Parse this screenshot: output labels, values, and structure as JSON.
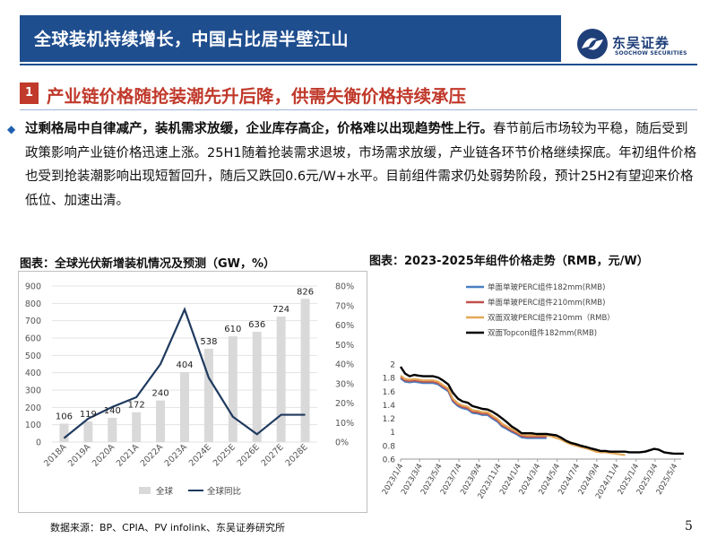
{
  "header": {
    "title": "全球装机持续增长，中国占比居半壁江山",
    "logo_name": "东吴证券",
    "logo_sub": "SOOCHOW SECURITIES"
  },
  "section": {
    "number": "1",
    "title": "产业链价格随抢装潮先升后降，供需失衡价格持续承压"
  },
  "paragraph": {
    "bold": "过剩格局中自律减产，装机需求放缓，企业库存高企，价格难以出现趋势性上行。",
    "normal": "春节前后市场较为平稳，随后受到政策影响产业链价格迅速上涨。25H1随着抢装需求退坡，市场需求放缓，产业链各环节价格继续探底。年初组件价格也受到抢装潮影响出现短暂回升，随后又跌回0.6元/W+水平。目前组件需求仍处弱势阶段，预计25H2有望迎来价格低位、加速出清。"
  },
  "footer": {
    "source": "数据来源：BP、CPIA、PV infolink、东吴证券研究所",
    "page": "5"
  },
  "chart_data": [
    {
      "type": "bar",
      "title": "图表：全球光伏新增装机情况及预测（GW，%）",
      "categories": [
        "2018A",
        "2019A",
        "2020A",
        "2021A",
        "2022A",
        "2023A",
        "2024E",
        "2025E",
        "2026E",
        "2027E",
        "2028E"
      ],
      "series": [
        {
          "name": "全球",
          "kind": "bar",
          "axis": "left",
          "values": [
            106,
            119,
            140,
            172,
            240,
            404,
            538,
            610,
            636,
            724,
            826
          ],
          "color": "#d9d9d9"
        },
        {
          "name": "全球同比",
          "kind": "line",
          "axis": "right",
          "values": [
            0.02,
            0.12,
            0.18,
            0.23,
            0.4,
            0.68,
            0.33,
            0.13,
            0.04,
            0.14,
            0.14
          ],
          "color": "#1f3a5f"
        }
      ],
      "y_left": {
        "min": 0,
        "max": 900,
        "ticks": [
          "0",
          "100",
          "200",
          "300",
          "400",
          "500",
          "600",
          "700",
          "800",
          "900"
        ]
      },
      "y_right": {
        "min": 0,
        "max": 0.8,
        "ticks": [
          "0%",
          "10%",
          "20%",
          "30%",
          "40%",
          "50%",
          "60%",
          "70%",
          "80%"
        ]
      },
      "grid": true,
      "legend": "bottom"
    },
    {
      "type": "line",
      "title": "图表：2023-2025年组件价格走势（RMB，元/W）",
      "x_ticks": [
        "2023/1/4",
        "2023/3/4",
        "2023/5/4",
        "2023/7/4",
        "2023/9/4",
        "2023/11/4",
        "2024/1/4",
        "2024/3/4",
        "2024/5/4",
        "2024/7/4",
        "2024/9/4",
        "2024/11/4",
        "2025/1/4",
        "2025/3/4",
        "2025/5/4"
      ],
      "y_axis": {
        "min": 0.6,
        "max": 2.0,
        "ticks": [
          "0.6",
          "0.8",
          "1",
          "1.2",
          "1.4",
          "1.6",
          "1.8",
          "2"
        ]
      },
      "series": [
        {
          "name": "单面单玻PERC组件182mm(RMB)",
          "color": "#4a7fc1",
          "x": [
            "2023/1/4",
            "2023/1/18",
            "2023/2/1",
            "2023/2/15",
            "2023/3/1",
            "2023/3/15",
            "2023/4/1",
            "2023/4/15",
            "2023/5/1",
            "2023/5/15",
            "2023/6/1",
            "2023/6/15",
            "2023/7/1",
            "2023/7/15",
            "2023/8/1",
            "2023/8/15",
            "2023/9/1",
            "2023/9/15",
            "2023/10/1",
            "2023/10/15",
            "2023/11/1",
            "2023/11/15",
            "2023/12/1",
            "2023/12/15",
            "2024/1/1",
            "2024/1/15",
            "2024/2/1",
            "2024/2/15",
            "2024/3/1",
            "2024/3/15",
            "2024/4/1"
          ],
          "values": [
            1.79,
            1.74,
            1.73,
            1.74,
            1.73,
            1.72,
            1.72,
            1.72,
            1.7,
            1.65,
            1.6,
            1.45,
            1.38,
            1.35,
            1.33,
            1.28,
            1.27,
            1.25,
            1.25,
            1.2,
            1.15,
            1.08,
            1.04,
            1.0,
            0.96,
            0.92,
            0.91,
            0.91,
            0.91,
            0.91,
            0.91
          ]
        },
        {
          "name": "单面单玻PERC组件210mm(RMB)",
          "color": "#c0504d",
          "x": [
            "2023/1/4",
            "2023/1/18",
            "2023/2/1",
            "2023/2/15",
            "2023/3/1",
            "2023/3/15",
            "2023/4/1",
            "2023/4/15",
            "2023/5/1",
            "2023/5/15",
            "2023/6/1",
            "2023/6/15",
            "2023/7/1",
            "2023/7/15",
            "2023/8/1",
            "2023/8/15",
            "2023/9/1",
            "2023/9/15",
            "2023/10/1",
            "2023/10/15",
            "2023/11/1",
            "2023/11/15",
            "2023/12/1",
            "2023/12/15",
            "2024/1/1",
            "2024/1/15",
            "2024/2/1",
            "2024/2/15",
            "2024/3/1",
            "2024/3/15",
            "2024/4/1"
          ],
          "values": [
            1.81,
            1.76,
            1.75,
            1.76,
            1.75,
            1.74,
            1.74,
            1.74,
            1.72,
            1.67,
            1.62,
            1.47,
            1.4,
            1.37,
            1.35,
            1.3,
            1.29,
            1.27,
            1.27,
            1.22,
            1.17,
            1.1,
            1.06,
            1.02,
            0.98,
            0.94,
            0.93,
            0.93,
            0.93,
            0.93,
            0.93
          ]
        },
        {
          "name": "双面双玻PERC组件210mm（RMB）",
          "color": "#e3a857",
          "x": [
            "2023/1/4",
            "2023/1/18",
            "2023/2/1",
            "2023/2/15",
            "2023/3/1",
            "2023/3/15",
            "2023/4/1",
            "2023/4/15",
            "2023/5/1",
            "2023/5/15",
            "2023/6/1",
            "2023/6/15",
            "2023/7/1",
            "2023/7/15",
            "2023/8/1",
            "2023/8/15",
            "2023/9/1",
            "2023/9/15",
            "2023/10/1",
            "2023/10/15",
            "2023/11/1",
            "2023/11/15",
            "2023/12/1",
            "2023/12/15",
            "2024/1/1",
            "2024/1/15",
            "2024/2/1",
            "2024/2/15",
            "2024/3/1",
            "2024/3/15",
            "2024/4/1",
            "2024/4/15",
            "2024/5/1",
            "2024/5/15",
            "2024/6/1",
            "2024/6/15",
            "2024/7/1",
            "2024/7/15",
            "2024/8/1",
            "2024/8/15",
            "2024/9/1",
            "2024/9/15",
            "2024/10/1",
            "2024/10/15",
            "2024/11/1",
            "2024/11/15",
            "2024/12/1"
          ],
          "values": [
            1.83,
            1.78,
            1.77,
            1.78,
            1.77,
            1.76,
            1.76,
            1.76,
            1.74,
            1.69,
            1.64,
            1.49,
            1.42,
            1.39,
            1.37,
            1.32,
            1.31,
            1.29,
            1.29,
            1.24,
            1.19,
            1.12,
            1.08,
            1.04,
            1.0,
            0.96,
            0.95,
            0.95,
            0.95,
            0.95,
            0.95,
            0.94,
            0.91,
            0.89,
            0.85,
            0.82,
            0.8,
            0.78,
            0.76,
            0.74,
            0.71,
            0.7,
            0.7,
            0.69,
            0.68,
            0.67,
            0.66
          ]
        },
        {
          "name": "双面Topcon组件182mm(RMB)",
          "color": "#000000",
          "x": [
            "2023/1/4",
            "2023/1/18",
            "2023/2/1",
            "2023/2/15",
            "2023/3/1",
            "2023/3/15",
            "2023/4/1",
            "2023/4/15",
            "2023/5/1",
            "2023/5/15",
            "2023/6/1",
            "2023/6/15",
            "2023/7/1",
            "2023/7/15",
            "2023/8/1",
            "2023/8/15",
            "2023/9/1",
            "2023/9/15",
            "2023/10/1",
            "2023/10/15",
            "2023/11/1",
            "2023/11/15",
            "2023/12/1",
            "2023/12/15",
            "2024/1/1",
            "2024/1/15",
            "2024/2/1",
            "2024/2/15",
            "2024/3/1",
            "2024/3/15",
            "2024/4/1",
            "2024/4/15",
            "2024/5/1",
            "2024/5/15",
            "2024/6/1",
            "2024/6/15",
            "2024/7/1",
            "2024/7/15",
            "2024/8/1",
            "2024/8/15",
            "2024/9/1",
            "2024/9/15",
            "2024/10/1",
            "2024/10/15",
            "2024/11/1",
            "2024/11/15",
            "2024/12/1",
            "2024/12/15",
            "2025/1/1",
            "2025/1/15",
            "2025/2/1",
            "2025/2/15",
            "2025/3/1",
            "2025/3/15",
            "2025/4/1",
            "2025/4/15",
            "2025/5/1",
            "2025/5/15",
            "2025/6/1"
          ],
          "values": [
            1.96,
            1.86,
            1.82,
            1.84,
            1.83,
            1.82,
            1.82,
            1.82,
            1.8,
            1.76,
            1.7,
            1.58,
            1.49,
            1.45,
            1.43,
            1.38,
            1.36,
            1.34,
            1.33,
            1.3,
            1.25,
            1.2,
            1.14,
            1.08,
            1.03,
            0.98,
            0.98,
            0.98,
            0.97,
            0.97,
            0.97,
            0.96,
            0.95,
            0.92,
            0.87,
            0.84,
            0.82,
            0.8,
            0.78,
            0.76,
            0.74,
            0.72,
            0.72,
            0.71,
            0.71,
            0.71,
            0.71,
            0.7,
            0.7,
            0.7,
            0.71,
            0.73,
            0.75,
            0.74,
            0.7,
            0.69,
            0.68,
            0.68,
            0.68
          ]
        }
      ],
      "legend": "top-left",
      "grid": false
    }
  ]
}
